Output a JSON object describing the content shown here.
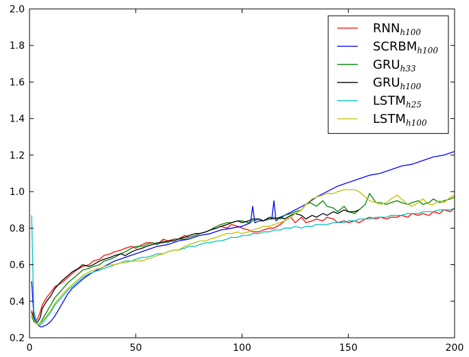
{
  "chart_data": {
    "type": "line",
    "title": "",
    "xlabel": "",
    "ylabel": "",
    "xlim": [
      0,
      200
    ],
    "ylim": [
      0.2,
      2.0
    ],
    "xticks": [
      "0",
      "50",
      "100",
      "150",
      "200"
    ],
    "yticks": [
      "0.2",
      "0.4",
      "0.6",
      "0.8",
      "1.0",
      "1.2",
      "1.4",
      "1.6",
      "1.8",
      "2.0"
    ],
    "grid": false,
    "legend_position": "top-right",
    "series": [
      {
        "name": "RNN",
        "sub": "h100",
        "color": "#ff0000",
        "x": [
          1,
          2,
          3,
          4,
          5,
          6,
          8,
          10,
          12,
          15,
          18,
          20,
          22,
          25,
          28,
          30,
          33,
          35,
          38,
          40,
          43,
          45,
          48,
          50,
          53,
          55,
          58,
          60,
          63,
          65,
          68,
          70,
          73,
          75,
          78,
          80,
          83,
          85,
          88,
          90,
          93,
          95,
          98,
          100,
          103,
          105,
          108,
          110,
          113,
          115,
          118,
          120,
          123,
          125,
          128,
          130,
          133,
          135,
          138,
          140,
          143,
          145,
          148,
          150,
          153,
          155,
          158,
          160,
          163,
          165,
          168,
          170,
          173,
          175,
          178,
          180,
          183,
          185,
          188,
          190,
          193,
          195,
          198,
          200
        ],
        "values": [
          0.35,
          0.3,
          0.29,
          0.31,
          0.34,
          0.38,
          0.42,
          0.45,
          0.48,
          0.5,
          0.53,
          0.55,
          0.57,
          0.59,
          0.6,
          0.62,
          0.63,
          0.65,
          0.66,
          0.67,
          0.68,
          0.69,
          0.7,
          0.69,
          0.71,
          0.72,
          0.72,
          0.71,
          0.74,
          0.73,
          0.74,
          0.74,
          0.76,
          0.75,
          0.76,
          0.77,
          0.78,
          0.79,
          0.8,
          0.81,
          0.8,
          0.82,
          0.81,
          0.8,
          0.79,
          0.78,
          0.78,
          0.79,
          0.8,
          0.8,
          0.82,
          0.84,
          0.86,
          0.83,
          0.86,
          0.83,
          0.84,
          0.85,
          0.84,
          0.86,
          0.85,
          0.83,
          0.84,
          0.83,
          0.84,
          0.83,
          0.85,
          0.86,
          0.85,
          0.86,
          0.85,
          0.86,
          0.86,
          0.87,
          0.86,
          0.88,
          0.87,
          0.88,
          0.87,
          0.89,
          0.88,
          0.9,
          0.89,
          0.91
        ]
      },
      {
        "name": "SCRBM",
        "sub": "h100",
        "color": "#0000ff",
        "x": [
          1,
          2,
          3,
          4,
          5,
          6,
          7,
          8,
          10,
          12,
          14,
          16,
          18,
          20,
          23,
          26,
          30,
          35,
          40,
          45,
          50,
          55,
          60,
          65,
          70,
          75,
          80,
          85,
          90,
          95,
          100,
          102,
          104,
          105,
          106,
          108,
          110,
          112,
          114,
          115,
          116,
          118,
          120,
          125,
          130,
          135,
          140,
          145,
          150,
          155,
          160,
          165,
          170,
          175,
          180,
          185,
          190,
          195,
          200
        ],
        "values": [
          0.51,
          0.32,
          0.28,
          0.27,
          0.26,
          0.26,
          0.265,
          0.27,
          0.29,
          0.32,
          0.36,
          0.4,
          0.44,
          0.47,
          0.5,
          0.53,
          0.56,
          0.59,
          0.62,
          0.64,
          0.66,
          0.68,
          0.7,
          0.71,
          0.73,
          0.74,
          0.76,
          0.77,
          0.79,
          0.8,
          0.81,
          0.82,
          0.83,
          0.92,
          0.83,
          0.84,
          0.84,
          0.85,
          0.85,
          0.95,
          0.84,
          0.86,
          0.87,
          0.9,
          0.93,
          0.97,
          1.0,
          1.03,
          1.05,
          1.07,
          1.09,
          1.1,
          1.12,
          1.14,
          1.15,
          1.17,
          1.19,
          1.2,
          1.22
        ]
      },
      {
        "name": "GRU",
        "sub": "h33",
        "color": "#008000",
        "x": [
          1,
          2,
          3,
          4,
          5,
          6,
          8,
          10,
          12,
          15,
          18,
          20,
          23,
          25,
          28,
          30,
          33,
          35,
          38,
          40,
          43,
          45,
          48,
          50,
          53,
          55,
          58,
          60,
          63,
          65,
          68,
          70,
          73,
          75,
          78,
          80,
          83,
          85,
          88,
          90,
          93,
          95,
          98,
          100,
          103,
          105,
          108,
          110,
          113,
          115,
          118,
          120,
          123,
          125,
          128,
          130,
          132,
          135,
          138,
          140,
          143,
          145,
          148,
          150,
          153,
          155,
          158,
          160,
          163,
          165,
          168,
          170,
          173,
          175,
          178,
          180,
          183,
          185,
          188,
          190,
          193,
          195,
          198,
          200
        ],
        "values": [
          0.32,
          0.29,
          0.28,
          0.27,
          0.28,
          0.3,
          0.34,
          0.38,
          0.42,
          0.46,
          0.5,
          0.52,
          0.55,
          0.57,
          0.58,
          0.59,
          0.6,
          0.62,
          0.63,
          0.64,
          0.66,
          0.67,
          0.69,
          0.7,
          0.7,
          0.71,
          0.72,
          0.71,
          0.73,
          0.72,
          0.74,
          0.74,
          0.74,
          0.75,
          0.76,
          0.77,
          0.78,
          0.79,
          0.81,
          0.82,
          0.83,
          0.83,
          0.84,
          0.84,
          0.83,
          0.84,
          0.85,
          0.84,
          0.85,
          0.86,
          0.85,
          0.87,
          0.88,
          0.89,
          0.9,
          0.93,
          0.94,
          0.92,
          0.95,
          0.92,
          0.91,
          0.89,
          0.92,
          0.89,
          0.88,
          0.9,
          0.93,
          0.99,
          0.94,
          0.94,
          0.93,
          0.94,
          0.95,
          0.94,
          0.93,
          0.94,
          0.95,
          0.93,
          0.94,
          0.96,
          0.94,
          0.95,
          0.96,
          0.97
        ]
      },
      {
        "name": "GRU",
        "sub": "h100",
        "color": "#000000",
        "x": [
          1,
          2,
          3,
          4,
          5,
          6,
          8,
          10,
          12,
          15,
          18,
          20,
          23,
          25,
          28,
          30,
          33,
          35,
          38,
          40,
          43,
          45,
          48,
          50,
          53,
          55,
          58,
          60,
          63,
          65,
          68,
          70,
          73,
          75,
          78,
          80,
          83,
          85,
          88,
          90,
          93,
          95,
          98,
          100,
          103,
          105,
          108,
          110,
          113,
          115,
          118,
          120,
          123,
          125,
          128,
          130,
          133,
          135,
          138,
          140,
          143,
          145,
          148,
          150,
          153,
          155
        ],
        "values": [
          0.34,
          0.3,
          0.28,
          0.29,
          0.31,
          0.36,
          0.4,
          0.43,
          0.47,
          0.51,
          0.54,
          0.56,
          0.58,
          0.6,
          0.59,
          0.6,
          0.62,
          0.63,
          0.64,
          0.65,
          0.66,
          0.65,
          0.67,
          0.68,
          0.69,
          0.7,
          0.71,
          0.72,
          0.72,
          0.73,
          0.73,
          0.74,
          0.75,
          0.76,
          0.77,
          0.77,
          0.78,
          0.79,
          0.8,
          0.81,
          0.82,
          0.83,
          0.84,
          0.83,
          0.84,
          0.85,
          0.85,
          0.84,
          0.86,
          0.85,
          0.86,
          0.85,
          0.87,
          0.88,
          0.87,
          0.85,
          0.87,
          0.86,
          0.88,
          0.87,
          0.89,
          0.88,
          0.9,
          0.89,
          0.89,
          0.9
        ]
      },
      {
        "name": "LSTM",
        "sub": "h25",
        "color": "#00bfbf",
        "x": [
          1,
          2,
          3,
          4,
          5,
          6,
          8,
          10,
          12,
          15,
          18,
          20,
          23,
          25,
          28,
          30,
          33,
          35,
          38,
          40,
          43,
          45,
          48,
          50,
          53,
          55,
          58,
          60,
          63,
          65,
          68,
          70,
          73,
          75,
          78,
          80,
          83,
          85,
          88,
          90,
          93,
          95,
          98,
          100,
          103,
          105,
          108,
          110,
          113,
          115,
          118,
          120,
          123,
          125,
          128,
          130,
          133,
          135,
          138,
          140,
          143,
          145,
          148,
          150,
          153,
          155,
          158,
          160,
          163,
          165,
          168,
          170,
          173,
          175,
          178,
          180,
          183,
          185,
          188,
          190,
          193,
          195,
          198,
          200
        ],
        "values": [
          0.87,
          0.35,
          0.3,
          0.28,
          0.27,
          0.28,
          0.31,
          0.34,
          0.38,
          0.42,
          0.46,
          0.48,
          0.51,
          0.53,
          0.55,
          0.56,
          0.57,
          0.58,
          0.59,
          0.6,
          0.61,
          0.62,
          0.62,
          0.63,
          0.64,
          0.64,
          0.65,
          0.66,
          0.66,
          0.67,
          0.68,
          0.68,
          0.69,
          0.7,
          0.7,
          0.71,
          0.72,
          0.72,
          0.73,
          0.73,
          0.74,
          0.75,
          0.75,
          0.76,
          0.76,
          0.77,
          0.77,
          0.78,
          0.78,
          0.79,
          0.79,
          0.8,
          0.8,
          0.81,
          0.8,
          0.81,
          0.81,
          0.82,
          0.82,
          0.82,
          0.83,
          0.83,
          0.83,
          0.84,
          0.84,
          0.85,
          0.85,
          0.85,
          0.86,
          0.86,
          0.86,
          0.87,
          0.87,
          0.87,
          0.88,
          0.88,
          0.88,
          0.89,
          0.89,
          0.89,
          0.9,
          0.9,
          0.9,
          0.91
        ]
      },
      {
        "name": "LSTM",
        "sub": "h100",
        "color": "#bfbf00",
        "x": [
          1,
          2,
          3,
          4,
          5,
          6,
          8,
          10,
          12,
          15,
          18,
          20,
          23,
          25,
          28,
          30,
          33,
          35,
          38,
          40,
          43,
          45,
          48,
          50,
          53,
          55,
          58,
          60,
          63,
          65,
          68,
          70,
          73,
          75,
          78,
          80,
          83,
          85,
          88,
          90,
          93,
          95,
          98,
          100,
          103,
          105,
          108,
          110,
          113,
          115,
          118,
          120,
          123,
          125,
          128,
          130,
          133,
          135,
          138,
          140,
          143,
          145,
          148,
          150,
          153,
          155,
          158,
          160,
          163,
          165,
          168,
          170,
          173,
          175,
          178,
          180,
          183,
          185,
          188,
          190,
          193,
          195,
          198,
          200
        ],
        "values": [
          0.33,
          0.3,
          0.28,
          0.27,
          0.28,
          0.29,
          0.32,
          0.35,
          0.39,
          0.43,
          0.47,
          0.49,
          0.52,
          0.54,
          0.56,
          0.57,
          0.58,
          0.59,
          0.6,
          0.6,
          0.61,
          0.61,
          0.62,
          0.62,
          0.62,
          0.63,
          0.64,
          0.65,
          0.66,
          0.67,
          0.68,
          0.68,
          0.7,
          0.71,
          0.72,
          0.73,
          0.73,
          0.74,
          0.75,
          0.76,
          0.77,
          0.77,
          0.78,
          0.77,
          0.78,
          0.79,
          0.8,
          0.81,
          0.81,
          0.82,
          0.83,
          0.84,
          0.86,
          0.88,
          0.9,
          0.93,
          0.96,
          0.97,
          0.98,
          0.99,
          0.99,
          1.0,
          1.01,
          1.01,
          1.01,
          1.0,
          0.97,
          0.95,
          0.94,
          0.93,
          0.94,
          0.96,
          0.98,
          0.96,
          0.93,
          0.92,
          0.94,
          0.96,
          0.93,
          0.93,
          0.95,
          0.94,
          0.97,
          0.98
        ]
      }
    ]
  }
}
